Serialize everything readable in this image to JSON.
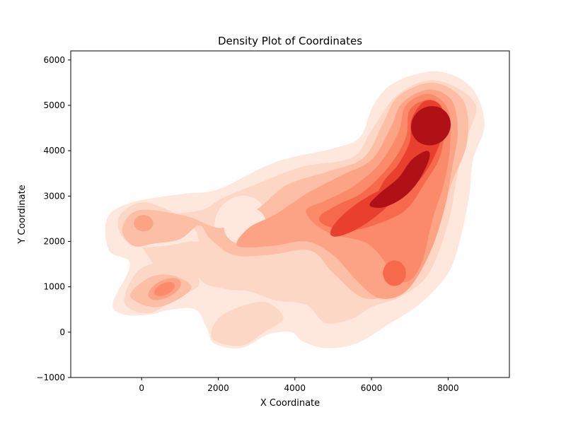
{
  "chart_data": {
    "type": "heatmap",
    "title": "Density Plot of Coordinates",
    "xlabel": "X Coordinate",
    "ylabel": "Y Coordinate",
    "xlim": [
      -1850,
      9600
    ],
    "ylim": [
      -1000,
      6200
    ],
    "x_ticks": [
      0,
      2000,
      4000,
      6000,
      8000
    ],
    "x_tick_labels": [
      "0",
      "2000",
      "4000",
      "6000",
      "8000"
    ],
    "y_ticks": [
      -1000,
      0,
      1000,
      2000,
      3000,
      4000,
      5000,
      6000
    ],
    "y_tick_labels": [
      "−1000",
      "0",
      "1000",
      "2000",
      "3000",
      "4000",
      "5000",
      "6000"
    ],
    "grid": false,
    "colormap": "Reds",
    "level_colors": [
      "#fee8dd",
      "#fdd7c6",
      "#fcbea5",
      "#fca385",
      "#fb8a6a",
      "#f6694c",
      "#e83f2f",
      "#af1117"
    ],
    "density_peaks": [
      {
        "x": 7550,
        "y": 4550,
        "level": 8
      },
      {
        "x": 6900,
        "y": 3250,
        "level": 8
      },
      {
        "x": 5600,
        "y": 2500,
        "level": 6
      },
      {
        "x": 6600,
        "y": 1300,
        "level": 6
      },
      {
        "x": 600,
        "y": 950,
        "level": 4
      },
      {
        "x": 50,
        "y": 2400,
        "level": 3
      },
      {
        "x": 3200,
        "y": 700,
        "level": 2
      },
      {
        "x": 2600,
        "y": 2400,
        "level": 1
      }
    ]
  }
}
